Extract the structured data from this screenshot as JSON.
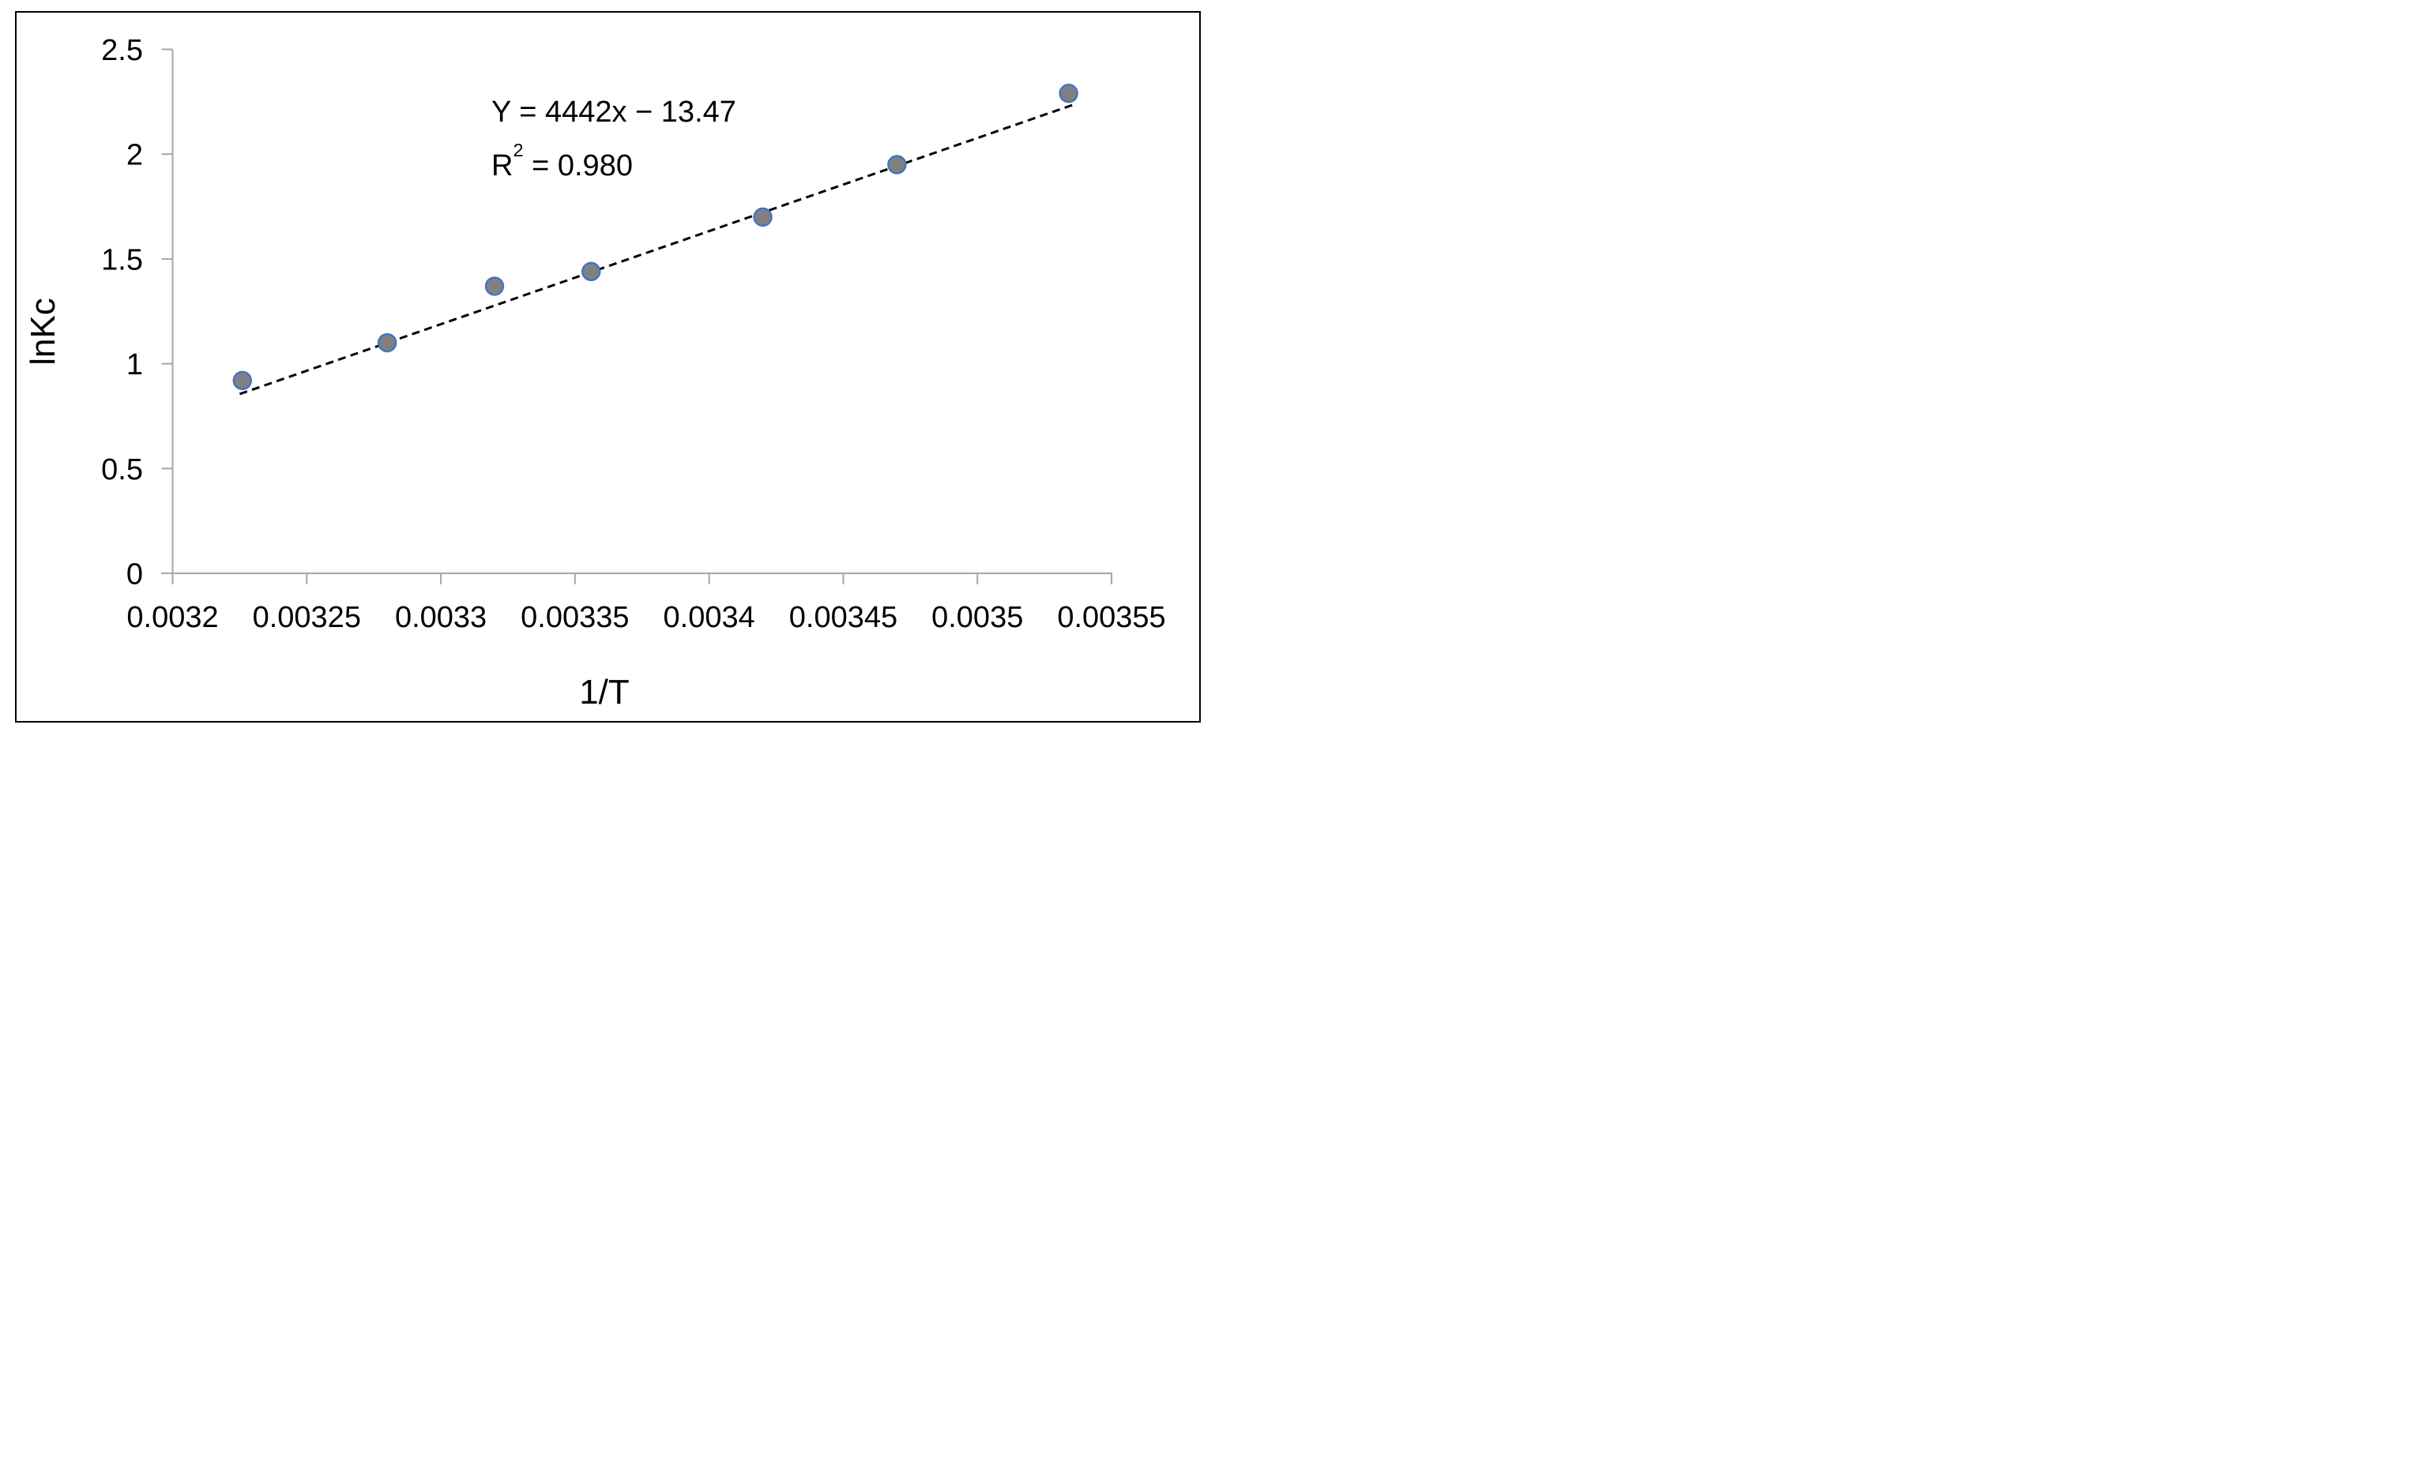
{
  "chart_data": {
    "type": "scatter",
    "title": "",
    "xlabel": "1/T",
    "ylabel": "lnKc",
    "xlim": [
      0.0032,
      0.00355
    ],
    "ylim": [
      0,
      2.5
    ],
    "grid": false,
    "legend": "none",
    "x_ticks": [
      0.0032,
      0.00325,
      0.0033,
      0.00335,
      0.0034,
      0.00345,
      0.0035,
      0.00355
    ],
    "x_tick_labels": [
      "0.0032",
      "0.00325",
      "0.0033",
      "0.00335",
      "0.0034",
      "0.00345",
      "0.0035",
      "0.00355"
    ],
    "y_ticks": [
      0,
      0.5,
      1,
      1.5,
      2,
      2.5
    ],
    "y_tick_labels": [
      "0",
      "0.5",
      "1",
      "1.5",
      "2",
      "2.5"
    ],
    "points": [
      {
        "x": 0.003226,
        "y": 0.92
      },
      {
        "x": 0.00328,
        "y": 1.1
      },
      {
        "x": 0.00332,
        "y": 1.37
      },
      {
        "x": 0.003356,
        "y": 1.44
      },
      {
        "x": 0.00342,
        "y": 1.7
      },
      {
        "x": 0.00347,
        "y": 1.95
      },
      {
        "x": 0.003534,
        "y": 2.29
      }
    ],
    "trendline": {
      "style": "dashed",
      "slope": 4442,
      "intercept": -13.47,
      "x_start": 0.003225,
      "x_end": 0.003537
    },
    "annotation": {
      "equation": "Y = 4442x − 13.47",
      "r_prefix": "R",
      "r_sup": "2",
      "r_rest": " = 0.980"
    },
    "colors": {
      "marker_fill": "#808080",
      "marker_stroke": "#4472C4",
      "trendline": "#000000",
      "axis": "#A6A6A6",
      "text": "#000000",
      "background": "#FFFFFF",
      "border": "#000000"
    }
  }
}
